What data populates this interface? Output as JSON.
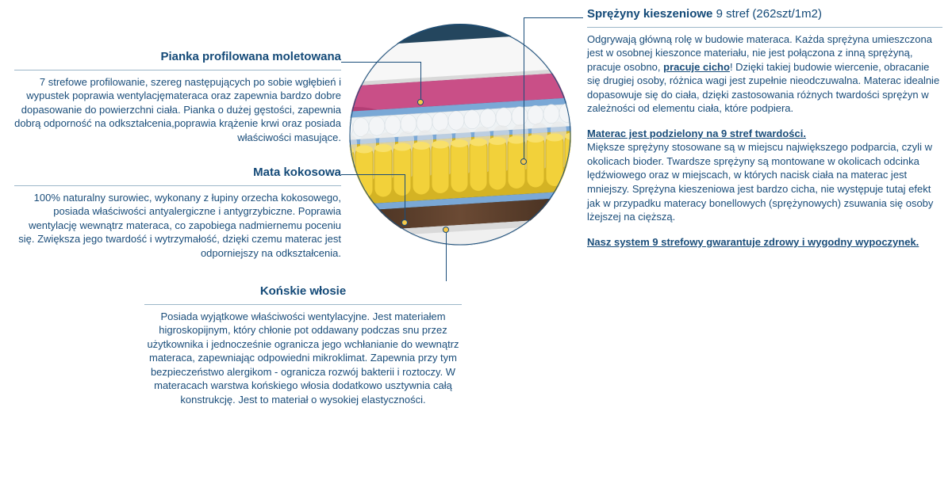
{
  "left": {
    "foam": {
      "title": "Pianka profilowana moletowana",
      "body": "7 strefowe profilowanie, szereg następujących po sobie wgłębień i wypustek poprawia wentylacjęmateraca oraz zapewnia bardzo dobre dopasowanie do powierzchni ciała. Pianka o dużej gęstości, zapewnia dobrą odporność na odkształcenia,poprawia krążenie krwi oraz posiada właściwości masujące."
    },
    "coco": {
      "title": "Mata kokosowa",
      "body": "100% naturalny surowiec, wykonany z łupiny orzecha kokosowego, posiada właściwości antyalergiczne i antygrzybiczne. Poprawia wentylację wewnątrz materaca, co zapobiega nadmiernemu poceniu się. Zwiększa jego twardość i wytrzymałość, dzięki czemu materac jest odporniejszy na odkształcenia."
    }
  },
  "bottom": {
    "horse": {
      "title": "Końskie włosie",
      "body": "Posiada wyjątkowe właściwości wentylacyjne. Jest materiałem higroskopijnym, który chłonie pot oddawany podczas snu przez użytkownika i jednocześnie ogranicza jego wchłanianie do wewnątrz materaca, zapewniając odpowiedni mikroklimat. Zapewnia przy tym bezpieczeństwo alergikom - ogranicza rozwój bakterii i roztoczy. W materacach warstwa końskiego włosia dodatkowo usztywnia całą konstrukcję. Jest to materiał o wysokiej elastyczności."
    }
  },
  "right": {
    "springs": {
      "title_bold": "Sprężyny kieszeniowe",
      "title_light": "9 stref (262szt/1m2)",
      "p1_a": "Odgrywają główną rolę w budowie materaca. Każda sprężyna umieszczona jest w osobnej kieszonce materiału, nie jest połączona z inną sprężyną, pracuje osobno, ",
      "p1_u": "pracuje cicho",
      "p1_b": "! Dzięki takiej budowie wiercenie, obracanie się drugiej osoby, różnica wagi jest zupełnie nieodczuwalna. Materac idealnie dopasowuje się do ciała, dzięki zastosowania różnych twardości sprężyn w zależności od elementu ciała, które podpiera.",
      "p2_head": "Materac jest podzielony na 9 stref twardości.",
      "p2": "Miększe sprężyny stosowane są w miejscu największego podparcia, czyli w okolicach bioder. Twardsze sprężyny są montowane w okolicach odcinka lędźwiowego oraz w miejscach, w których nacisk ciała na materac jest mniejszy. Sprężyna kieszeniowa jest bardzo cicha, nie występuje tutaj efekt jak w przypadku materacy bonellowych (sprężynowych) zsuwania się osoby lżejszej na cięższą.",
      "p3": "Nasz system 9 strefowy gwarantuje zdrowy i wygodny wypoczynek."
    }
  },
  "diagram": {
    "type": "infographic",
    "shape": "circle-crop",
    "radius": 140,
    "colors": {
      "outer_fabric": "#f4f4f4",
      "pink_foam": "#c94f87",
      "blue_separator": "#7aa8d6",
      "white_foam": "#eef2f4",
      "spring_yellow": "#f2d13a",
      "spring_shadow": "#d4b324",
      "coco_mat": "#3e2a1c",
      "coco_mat_light": "#6b4a34",
      "shadow": "#2a3a48"
    },
    "callout_dot_color": "#f7c948",
    "callout_line_color": "#1a4d7a",
    "text_color": "#1a4d7a",
    "title_fontsize": 15,
    "body_fontsize": 13
  }
}
